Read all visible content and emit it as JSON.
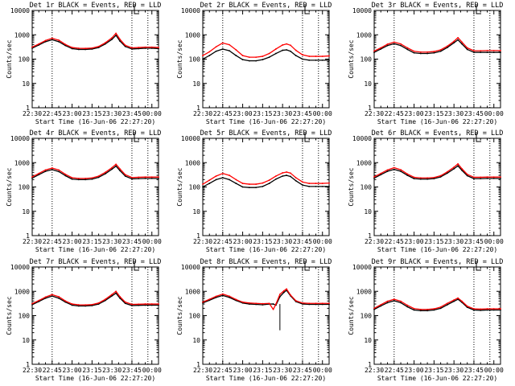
{
  "figure": {
    "colors": {
      "events": "#000000",
      "lld": "#ff0000",
      "axes": "#000000"
    }
  },
  "chart_data": [
    {
      "type": "line",
      "title": "Det 1r BLACK = Events, RED = LLD",
      "xlabel": "Start Time (16-Jun-06 22:27:20)",
      "ylabel": "Counts/sec",
      "xlim": [
        "22:30",
        "00:05"
      ],
      "ylim": [
        1,
        10000
      ],
      "yscale": "log",
      "x_ticks": [
        "22:30",
        "22:45",
        "23:00",
        "23:15",
        "23:30",
        "23:45",
        "00:00"
      ],
      "y_ticks": [
        "1",
        "10",
        "100",
        "1000",
        "10000"
      ],
      "markers": [
        "22:45",
        "23:45",
        "23:57"
      ],
      "x": [
        "22:30",
        "22:35",
        "22:40",
        "22:45",
        "22:50",
        "22:55",
        "23:00",
        "23:05",
        "23:10",
        "23:15",
        "23:20",
        "23:25",
        "23:30",
        "23:33",
        "23:36",
        "23:40",
        "23:45",
        "23:50",
        "23:55",
        "00:00",
        "00:05"
      ],
      "series": [
        {
          "name": "Events",
          "values": [
            280,
            380,
            520,
            630,
            520,
            360,
            270,
            250,
            250,
            260,
            300,
            420,
            650,
            950,
            550,
            330,
            260,
            270,
            280,
            280,
            270
          ]
        },
        {
          "name": "LLD",
          "values": [
            310,
            420,
            580,
            720,
            600,
            400,
            300,
            280,
            275,
            285,
            330,
            470,
            750,
            1150,
            650,
            370,
            290,
            300,
            310,
            310,
            300
          ]
        }
      ]
    },
    {
      "type": "line",
      "title": "Det 2r BLACK = Events, RED = LLD",
      "xlabel": "Start Time (16-Jun-06 22:27:20)",
      "ylabel": "Counts/sec",
      "xlim": [
        "22:30",
        "00:05"
      ],
      "ylim": [
        1,
        10000
      ],
      "yscale": "log",
      "x_ticks": [
        "22:30",
        "22:45",
        "23:00",
        "23:15",
        "23:30",
        "23:45",
        "00:00"
      ],
      "y_ticks": [
        "1",
        "10",
        "100",
        "1000",
        "10000"
      ],
      "markers": [
        "22:45",
        "23:45",
        "23:57"
      ],
      "x": [
        "22:30",
        "22:35",
        "22:40",
        "22:45",
        "22:50",
        "22:55",
        "23:00",
        "23:05",
        "23:10",
        "23:15",
        "23:20",
        "23:25",
        "23:30",
        "23:33",
        "23:36",
        "23:40",
        "23:45",
        "23:50",
        "23:55",
        "00:00",
        "00:05"
      ],
      "series": [
        {
          "name": "Events",
          "values": [
            100,
            140,
            210,
            260,
            220,
            140,
            95,
            85,
            85,
            95,
            120,
            170,
            230,
            240,
            210,
            140,
            100,
            90,
            90,
            90,
            90
          ]
        },
        {
          "name": "LLD",
          "values": [
            140,
            200,
            320,
            460,
            390,
            240,
            140,
            120,
            120,
            130,
            170,
            260,
            380,
            420,
            370,
            230,
            150,
            130,
            130,
            130,
            135
          ]
        }
      ]
    },
    {
      "type": "line",
      "title": "Det 3r BLACK = Events, RED = LLD",
      "xlabel": "Start Time (16-Jun-06 22:27:20)",
      "ylabel": "Counts/sec",
      "xlim": [
        "22:30",
        "00:05"
      ],
      "ylim": [
        1,
        10000
      ],
      "yscale": "log",
      "x_ticks": [
        "22:30",
        "22:45",
        "23:00",
        "23:15",
        "23:30",
        "23:45",
        "00:00"
      ],
      "y_ticks": [
        "1",
        "10",
        "100",
        "1000",
        "10000"
      ],
      "markers": [
        "22:45",
        "23:45",
        "23:57"
      ],
      "x": [
        "22:30",
        "22:35",
        "22:40",
        "22:45",
        "22:50",
        "22:55",
        "23:00",
        "23:05",
        "23:10",
        "23:15",
        "23:20",
        "23:25",
        "23:30",
        "23:33",
        "23:36",
        "23:40",
        "23:45",
        "23:50",
        "23:55",
        "00:00",
        "00:05"
      ],
      "series": [
        {
          "name": "Events",
          "values": [
            190,
            260,
            360,
            430,
            360,
            250,
            180,
            170,
            170,
            180,
            210,
            300,
            470,
            620,
            420,
            250,
            190,
            190,
            190,
            190,
            190
          ]
        },
        {
          "name": "LLD",
          "values": [
            215,
            290,
            410,
            500,
            420,
            290,
            210,
            195,
            195,
            205,
            240,
            340,
            540,
            760,
            500,
            290,
            220,
            220,
            225,
            225,
            225
          ]
        }
      ]
    },
    {
      "type": "line",
      "title": "Det 4r BLACK = Events, RED = LLD",
      "xlabel": "Start Time (16-Jun-06 22:27:20)",
      "ylabel": "Counts/sec",
      "xlim": [
        "22:30",
        "00:05"
      ],
      "ylim": [
        1,
        10000
      ],
      "yscale": "log",
      "x_ticks": [
        "22:30",
        "22:45",
        "23:00",
        "23:15",
        "23:30",
        "23:45",
        "00:00"
      ],
      "y_ticks": [
        "1",
        "10",
        "100",
        "1000",
        "10000"
      ],
      "markers": [
        "22:45",
        "23:45",
        "23:57"
      ],
      "x": [
        "22:30",
        "22:35",
        "22:40",
        "22:45",
        "22:50",
        "22:55",
        "23:00",
        "23:05",
        "23:10",
        "23:15",
        "23:20",
        "23:25",
        "23:30",
        "23:33",
        "23:36",
        "23:40",
        "23:45",
        "23:50",
        "23:55",
        "00:00",
        "00:05"
      ],
      "series": [
        {
          "name": "Events",
          "values": [
            230,
            320,
            440,
            520,
            430,
            290,
            210,
            200,
            200,
            210,
            250,
            350,
            540,
            720,
            470,
            280,
            215,
            220,
            225,
            225,
            225
          ]
        },
        {
          "name": "LLD",
          "values": [
            260,
            360,
            500,
            600,
            500,
            330,
            240,
            225,
            225,
            235,
            280,
            400,
            620,
            860,
            550,
            320,
            245,
            250,
            255,
            255,
            255
          ]
        }
      ]
    },
    {
      "type": "line",
      "title": "Det 5r BLACK = Events, RED = LLD",
      "xlabel": "Start Time (16-Jun-06 22:27:20)",
      "ylabel": "Counts/sec",
      "xlim": [
        "22:30",
        "00:05"
      ],
      "ylim": [
        1,
        10000
      ],
      "yscale": "log",
      "x_ticks": [
        "22:30",
        "22:45",
        "23:00",
        "23:15",
        "23:30",
        "23:45",
        "00:00"
      ],
      "y_ticks": [
        "1",
        "10",
        "100",
        "1000",
        "10000"
      ],
      "markers": [
        "22:45",
        "23:45",
        "23:57"
      ],
      "x": [
        "22:30",
        "22:35",
        "22:40",
        "22:45",
        "22:50",
        "22:55",
        "23:00",
        "23:05",
        "23:10",
        "23:15",
        "23:20",
        "23:25",
        "23:30",
        "23:33",
        "23:36",
        "23:40",
        "23:45",
        "23:50",
        "23:55",
        "00:00",
        "00:05"
      ],
      "series": [
        {
          "name": "Events",
          "values": [
            100,
            140,
            200,
            240,
            200,
            140,
            100,
            95,
            95,
            105,
            140,
            210,
            280,
            300,
            270,
            180,
            120,
            105,
            105,
            105,
            105
          ]
        },
        {
          "name": "LLD",
          "values": [
            130,
            190,
            280,
            360,
            300,
            200,
            140,
            130,
            130,
            145,
            190,
            280,
            380,
            410,
            370,
            240,
            160,
            140,
            140,
            140,
            145
          ]
        }
      ]
    },
    {
      "type": "line",
      "title": "Det 6r BLACK = Events, RED = LLD",
      "xlabel": "Start Time (16-Jun-06 22:27:20)",
      "ylabel": "Counts/sec",
      "xlim": [
        "22:30",
        "00:05"
      ],
      "ylim": [
        1,
        10000
      ],
      "yscale": "log",
      "x_ticks": [
        "22:30",
        "22:45",
        "23:00",
        "23:15",
        "23:30",
        "23:45",
        "00:00"
      ],
      "y_ticks": [
        "1",
        "10",
        "100",
        "1000",
        "10000"
      ],
      "markers": [
        "22:45",
        "23:45",
        "23:57"
      ],
      "x": [
        "22:30",
        "22:35",
        "22:40",
        "22:45",
        "22:50",
        "22:55",
        "23:00",
        "23:05",
        "23:10",
        "23:15",
        "23:20",
        "23:25",
        "23:30",
        "23:33",
        "23:36",
        "23:40",
        "23:45",
        "23:50",
        "23:55",
        "00:00",
        "00:05"
      ],
      "series": [
        {
          "name": "Events",
          "values": [
            230,
            320,
            440,
            530,
            440,
            300,
            220,
            210,
            210,
            220,
            260,
            370,
            560,
            740,
            480,
            290,
            220,
            220,
            225,
            225,
            225
          ]
        },
        {
          "name": "LLD",
          "values": [
            260,
            360,
            500,
            620,
            510,
            340,
            250,
            235,
            235,
            245,
            290,
            420,
            650,
            890,
            560,
            330,
            250,
            250,
            255,
            255,
            255
          ]
        }
      ]
    },
    {
      "type": "line",
      "title": "Det 7r BLACK = Events, RED = LLD",
      "xlabel": "Start Time (16-Jun-06 22:27:20)",
      "ylabel": "Counts/sec",
      "xlim": [
        "22:30",
        "00:05"
      ],
      "ylim": [
        1,
        10000
      ],
      "yscale": "log",
      "x_ticks": [
        "22:30",
        "22:45",
        "23:00",
        "23:15",
        "23:30",
        "23:45",
        "00:00"
      ],
      "y_ticks": [
        "1",
        "10",
        "100",
        "1000",
        "10000"
      ],
      "markers": [
        "22:45",
        "23:45",
        "23:57"
      ],
      "x": [
        "22:30",
        "22:35",
        "22:40",
        "22:45",
        "22:50",
        "22:55",
        "23:00",
        "23:05",
        "23:10",
        "23:15",
        "23:20",
        "23:25",
        "23:30",
        "23:33",
        "23:36",
        "23:40",
        "23:45",
        "23:50",
        "23:55",
        "00:00",
        "00:05"
      ],
      "series": [
        {
          "name": "Events",
          "values": [
            280,
            380,
            520,
            640,
            520,
            360,
            270,
            250,
            250,
            260,
            300,
            420,
            650,
            840,
            520,
            320,
            260,
            265,
            270,
            270,
            270
          ]
        },
        {
          "name": "LLD",
          "values": [
            310,
            420,
            580,
            730,
            600,
            400,
            300,
            280,
            275,
            285,
            330,
            470,
            740,
            1000,
            600,
            360,
            290,
            295,
            300,
            300,
            300
          ]
        }
      ]
    },
    {
      "type": "line",
      "title": "Det 8r BLACK = Events, RED = LLD",
      "xlabel": "Start Time (16-Jun-06 22:27:20)",
      "ylabel": "Counts/sec",
      "xlim": [
        "22:30",
        "00:05"
      ],
      "ylim": [
        1,
        10000
      ],
      "yscale": "log",
      "x_ticks": [
        "22:30",
        "22:45",
        "23:00",
        "23:15",
        "23:30",
        "23:45",
        "00:00"
      ],
      "y_ticks": [
        "1",
        "10",
        "100",
        "1000",
        "10000"
      ],
      "markers": [
        "22:45",
        "23:45",
        "23:57"
      ],
      "x": [
        "22:30",
        "22:35",
        "22:40",
        "22:45",
        "22:50",
        "22:55",
        "23:00",
        "23:05",
        "23:10",
        "23:15",
        "23:20",
        "23:23",
        "23:25",
        "23:28",
        "23:31",
        "23:33",
        "23:36",
        "23:40",
        "23:45",
        "23:50",
        "23:55",
        "00:00",
        "00:05"
      ],
      "series": [
        {
          "name": "Events",
          "values": [
            330,
            430,
            560,
            680,
            560,
            420,
            330,
            300,
            290,
            280,
            300,
            300,
            270,
            600,
            900,
            1100,
            650,
            380,
            300,
            290,
            290,
            290,
            290
          ]
        },
        {
          "name": "LLD",
          "values": [
            360,
            470,
            620,
            770,
            630,
            460,
            360,
            330,
            320,
            310,
            320,
            180,
            300,
            750,
            1050,
            1250,
            700,
            410,
            330,
            320,
            320,
            320,
            320
          ]
        }
      ],
      "dropout": {
        "x": "23:28",
        "y_min": 25
      }
    },
    {
      "type": "line",
      "title": "Det 9r BLACK = Events, RED = LLD",
      "xlabel": "Start Time (16-Jun-06 22:27:20)",
      "ylabel": "Counts/sec",
      "xlim": [
        "22:30",
        "00:05"
      ],
      "ylim": [
        1,
        10000
      ],
      "yscale": "log",
      "x_ticks": [
        "22:30",
        "22:45",
        "23:00",
        "23:15",
        "23:30",
        "23:45",
        "00:00"
      ],
      "y_ticks": [
        "1",
        "10",
        "100",
        "1000",
        "10000"
      ],
      "markers": [
        "22:45",
        "23:45",
        "23:57"
      ],
      "x": [
        "22:30",
        "22:35",
        "22:40",
        "22:45",
        "22:50",
        "22:55",
        "23:00",
        "23:05",
        "23:10",
        "23:15",
        "23:20",
        "23:25",
        "23:30",
        "23:33",
        "23:36",
        "23:40",
        "23:45",
        "23:50",
        "23:55",
        "00:00",
        "00:05"
      ],
      "series": [
        {
          "name": "Events",
          "values": [
            180,
            250,
            340,
            410,
            340,
            230,
            170,
            160,
            160,
            170,
            200,
            280,
            390,
            470,
            350,
            220,
            170,
            165,
            170,
            170,
            170
          ]
        },
        {
          "name": "LLD",
          "values": [
            200,
            280,
            390,
            470,
            390,
            265,
            195,
            180,
            180,
            190,
            225,
            320,
            440,
            530,
            390,
            245,
            190,
            185,
            190,
            190,
            190
          ]
        }
      ]
    }
  ]
}
